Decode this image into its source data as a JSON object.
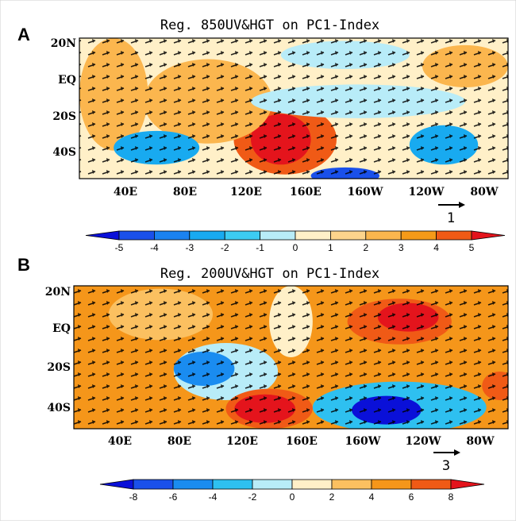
{
  "panels": [
    {
      "label": "A",
      "title": "Reg. 850UV&HGT on  PC1-Index",
      "lat_labels": [
        "20N",
        "EQ",
        "20S",
        "40S"
      ],
      "lon_labels": [
        "40E",
        "80E",
        "120E",
        "160E",
        "160W",
        "120W",
        "80W"
      ],
      "reference_vector": 1,
      "colorbar": {
        "levels": [
          -5,
          -4,
          -3,
          -2,
          -1,
          0,
          1,
          2,
          3,
          4,
          5
        ],
        "colors": [
          "#0a10d8",
          "#1a50ea",
          "#1a82f0",
          "#18aaf0",
          "#3cccf2",
          "#b8ecf8",
          "#fff0c8",
          "#fdd48c",
          "#fbb64e",
          "#f59a18",
          "#f05a16",
          "#e4141c"
        ]
      }
    },
    {
      "label": "B",
      "title": "Reg. 200UV&HGT on  PC1-Index",
      "lat_labels": [
        "20N",
        "EQ",
        "20S",
        "40S"
      ],
      "lon_labels": [
        "40E",
        "80E",
        "120E",
        "160E",
        "160W",
        "120W",
        "80W"
      ],
      "reference_vector": 3,
      "colorbar": {
        "levels": [
          -8,
          -6,
          -4,
          -2,
          0,
          2,
          4,
          6,
          8
        ],
        "colors": [
          "#0a10d8",
          "#1a50ea",
          "#1a8cf0",
          "#2ec0f0",
          "#b8ecf8",
          "#fff0c8",
          "#fbc060",
          "#f5961a",
          "#f05a16",
          "#e4141c"
        ]
      }
    }
  ]
}
